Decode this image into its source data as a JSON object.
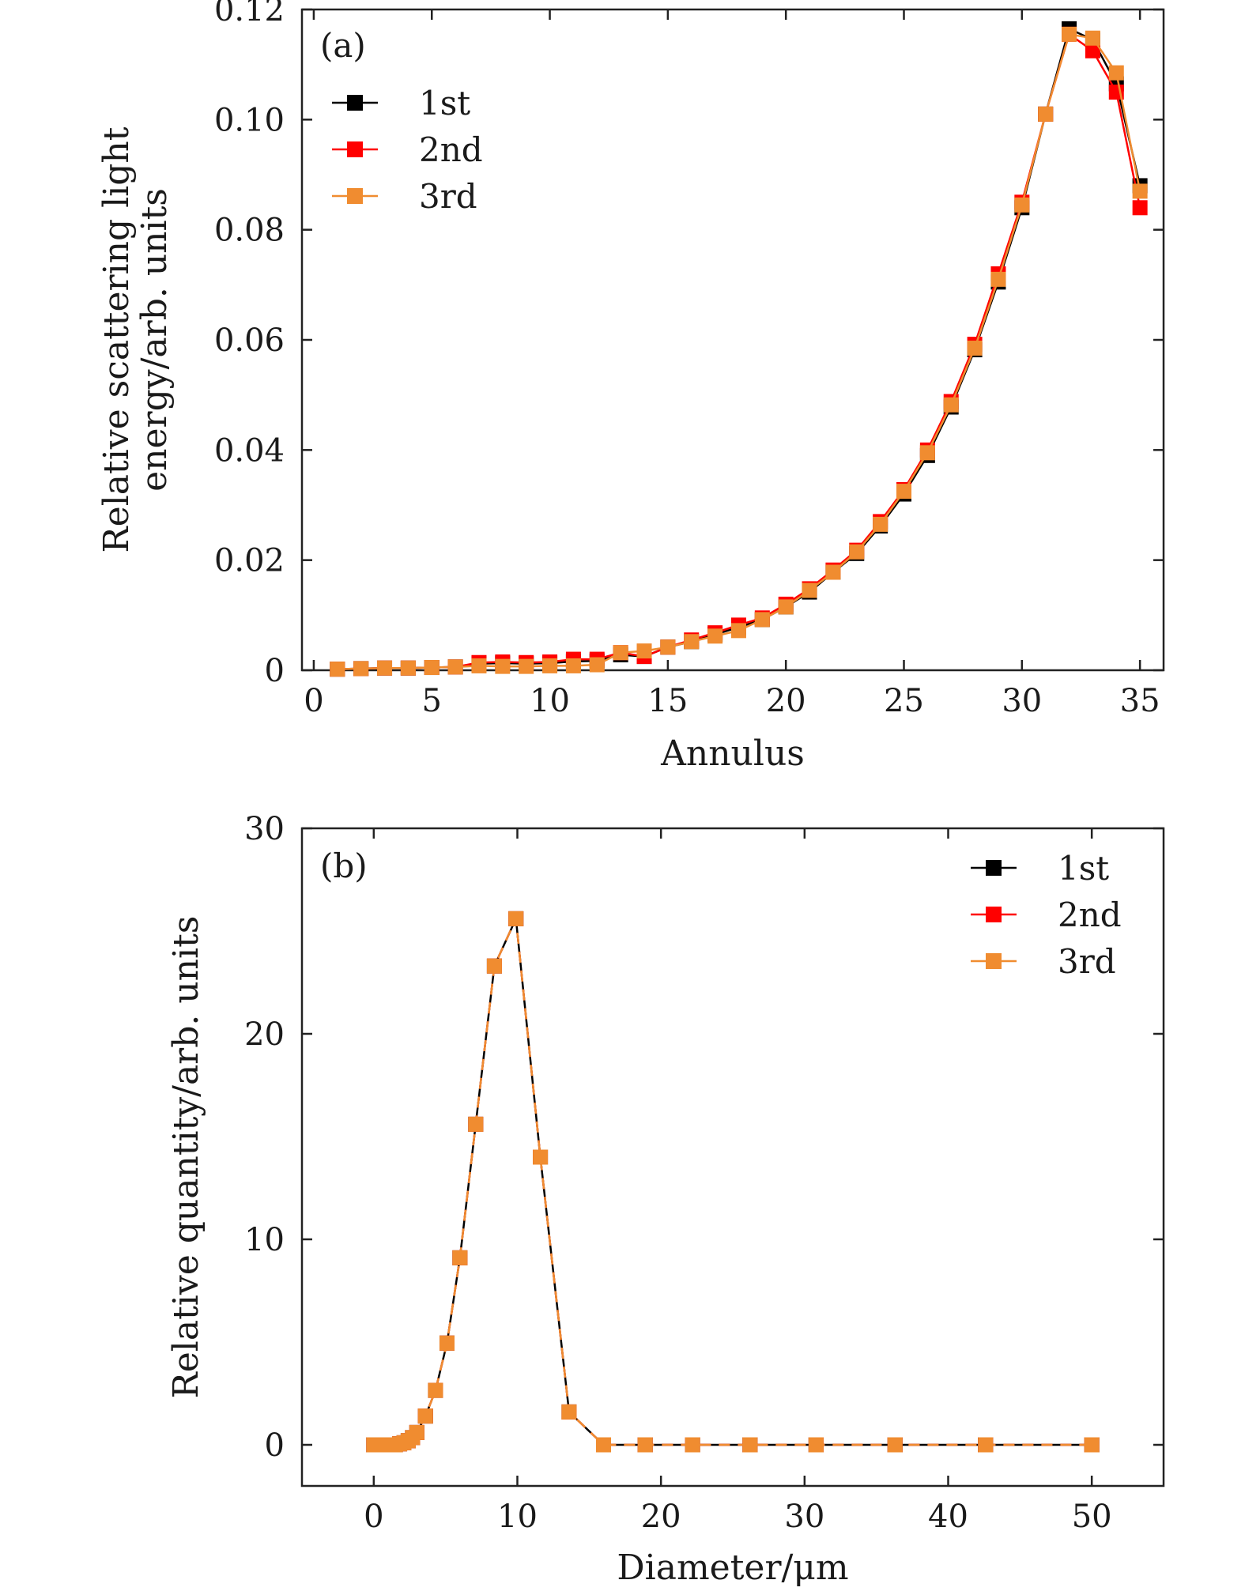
{
  "chart_data": [
    {
      "type": "line",
      "panel_label": "(a)",
      "xlabel": "Annulus",
      "ylabel_lines": [
        "Relative scattering light",
        "energy/arb. units"
      ],
      "xlim": [
        -0.5,
        36
      ],
      "ylim": [
        0,
        0.12
      ],
      "xticks": [
        0,
        5,
        10,
        15,
        20,
        25,
        30,
        35
      ],
      "yticks": [
        0,
        0.02,
        0.04,
        0.06,
        0.08,
        0.1,
        0.12
      ],
      "ytick_labels": [
        "0",
        "0.02",
        "0.04",
        "0.06",
        "0.08",
        "0.10",
        "0.12"
      ],
      "legend_position": "top-left",
      "x": [
        1,
        2,
        3,
        4,
        5,
        6,
        7,
        8,
        9,
        10,
        11,
        12,
        13,
        14,
        15,
        16,
        17,
        18,
        19,
        20,
        21,
        22,
        23,
        24,
        25,
        26,
        27,
        28,
        29,
        30,
        31,
        32,
        33,
        34,
        35
      ],
      "series": [
        {
          "name": "1st",
          "color": "#000000",
          "values": [
            0.0002,
            0.0003,
            0.0004,
            0.0004,
            0.0005,
            0.0006,
            0.0012,
            0.0013,
            0.0012,
            0.0013,
            0.0016,
            0.0017,
            0.0028,
            0.0025,
            0.0042,
            0.0052,
            0.0065,
            0.0078,
            0.0092,
            0.0115,
            0.0142,
            0.0178,
            0.0212,
            0.0262,
            0.032,
            0.039,
            0.0478,
            0.0582,
            0.0705,
            0.084,
            0.101,
            0.1165,
            0.1145,
            0.1065,
            0.088
          ]
        },
        {
          "name": "2nd",
          "color": "#ff0000",
          "values": [
            0.0002,
            0.0003,
            0.0004,
            0.0004,
            0.0005,
            0.0006,
            0.0014,
            0.0015,
            0.0014,
            0.0015,
            0.002,
            0.002,
            0.0032,
            0.0025,
            0.0042,
            0.0055,
            0.0068,
            0.0082,
            0.0095,
            0.012,
            0.0148,
            0.0182,
            0.0218,
            0.027,
            0.0328,
            0.04,
            0.0488,
            0.0592,
            0.072,
            0.085,
            0.101,
            0.1155,
            0.1125,
            0.105,
            0.084
          ]
        },
        {
          "name": "3rd",
          "color": "#f08c30",
          "values": [
            0.0002,
            0.0003,
            0.0004,
            0.0004,
            0.0005,
            0.0006,
            0.0008,
            0.0007,
            0.0007,
            0.0008,
            0.0008,
            0.001,
            0.0032,
            0.0035,
            0.0042,
            0.0052,
            0.0062,
            0.0072,
            0.0092,
            0.0115,
            0.0145,
            0.0178,
            0.0215,
            0.0265,
            0.0325,
            0.0395,
            0.0482,
            0.0585,
            0.071,
            0.0845,
            0.101,
            0.1155,
            0.1148,
            0.1085,
            0.087
          ]
        }
      ]
    },
    {
      "type": "line",
      "panel_label": "(b)",
      "xlabel": "Diameter/μm",
      "ylabel_lines": [
        "Relative quantity/arb. units"
      ],
      "xlim": [
        -5,
        55
      ],
      "ylim": [
        -2,
        30
      ],
      "xticks": [
        0,
        10,
        20,
        30,
        40,
        50
      ],
      "yticks": [
        0,
        10,
        20,
        30
      ],
      "ytick_labels": [
        "0",
        "10",
        "20",
        "30"
      ],
      "legend_position": "top-right",
      "x": [
        0,
        0.3,
        0.6,
        0.9,
        1.2,
        1.5,
        1.8,
        2.1,
        2.4,
        2.7,
        3.0,
        3.6,
        4.3,
        5.1,
        6.0,
        7.1,
        8.4,
        9.9,
        11.6,
        13.6,
        16.0,
        18.9,
        22.2,
        26.2,
        30.8,
        36.3,
        42.6,
        50.0
      ],
      "series": [
        {
          "name": "1st",
          "color": "#000000",
          "values": [
            0,
            0,
            0,
            0,
            0,
            0,
            0.05,
            0.1,
            0.2,
            0.35,
            0.6,
            1.4,
            2.65,
            4.95,
            9.1,
            15.6,
            23.3,
            25.6,
            14.0,
            1.6,
            0,
            0,
            0,
            0,
            0,
            0,
            0,
            0
          ]
        },
        {
          "name": "2nd",
          "color": "#ff0000",
          "values": [
            0,
            0,
            0,
            0,
            0,
            0,
            0.05,
            0.1,
            0.2,
            0.35,
            0.6,
            1.4,
            2.65,
            4.95,
            9.1,
            15.6,
            23.3,
            25.6,
            14.0,
            1.6,
            0,
            0,
            0,
            0,
            0,
            0,
            0,
            0
          ]
        },
        {
          "name": "3rd",
          "color": "#f08c30",
          "values": [
            0,
            0,
            0,
            0,
            0,
            0,
            0.05,
            0.1,
            0.2,
            0.35,
            0.6,
            1.4,
            2.65,
            4.95,
            9.1,
            15.6,
            23.3,
            25.6,
            14.0,
            1.6,
            0,
            0,
            0,
            0,
            0,
            0,
            0,
            0
          ]
        }
      ]
    }
  ]
}
